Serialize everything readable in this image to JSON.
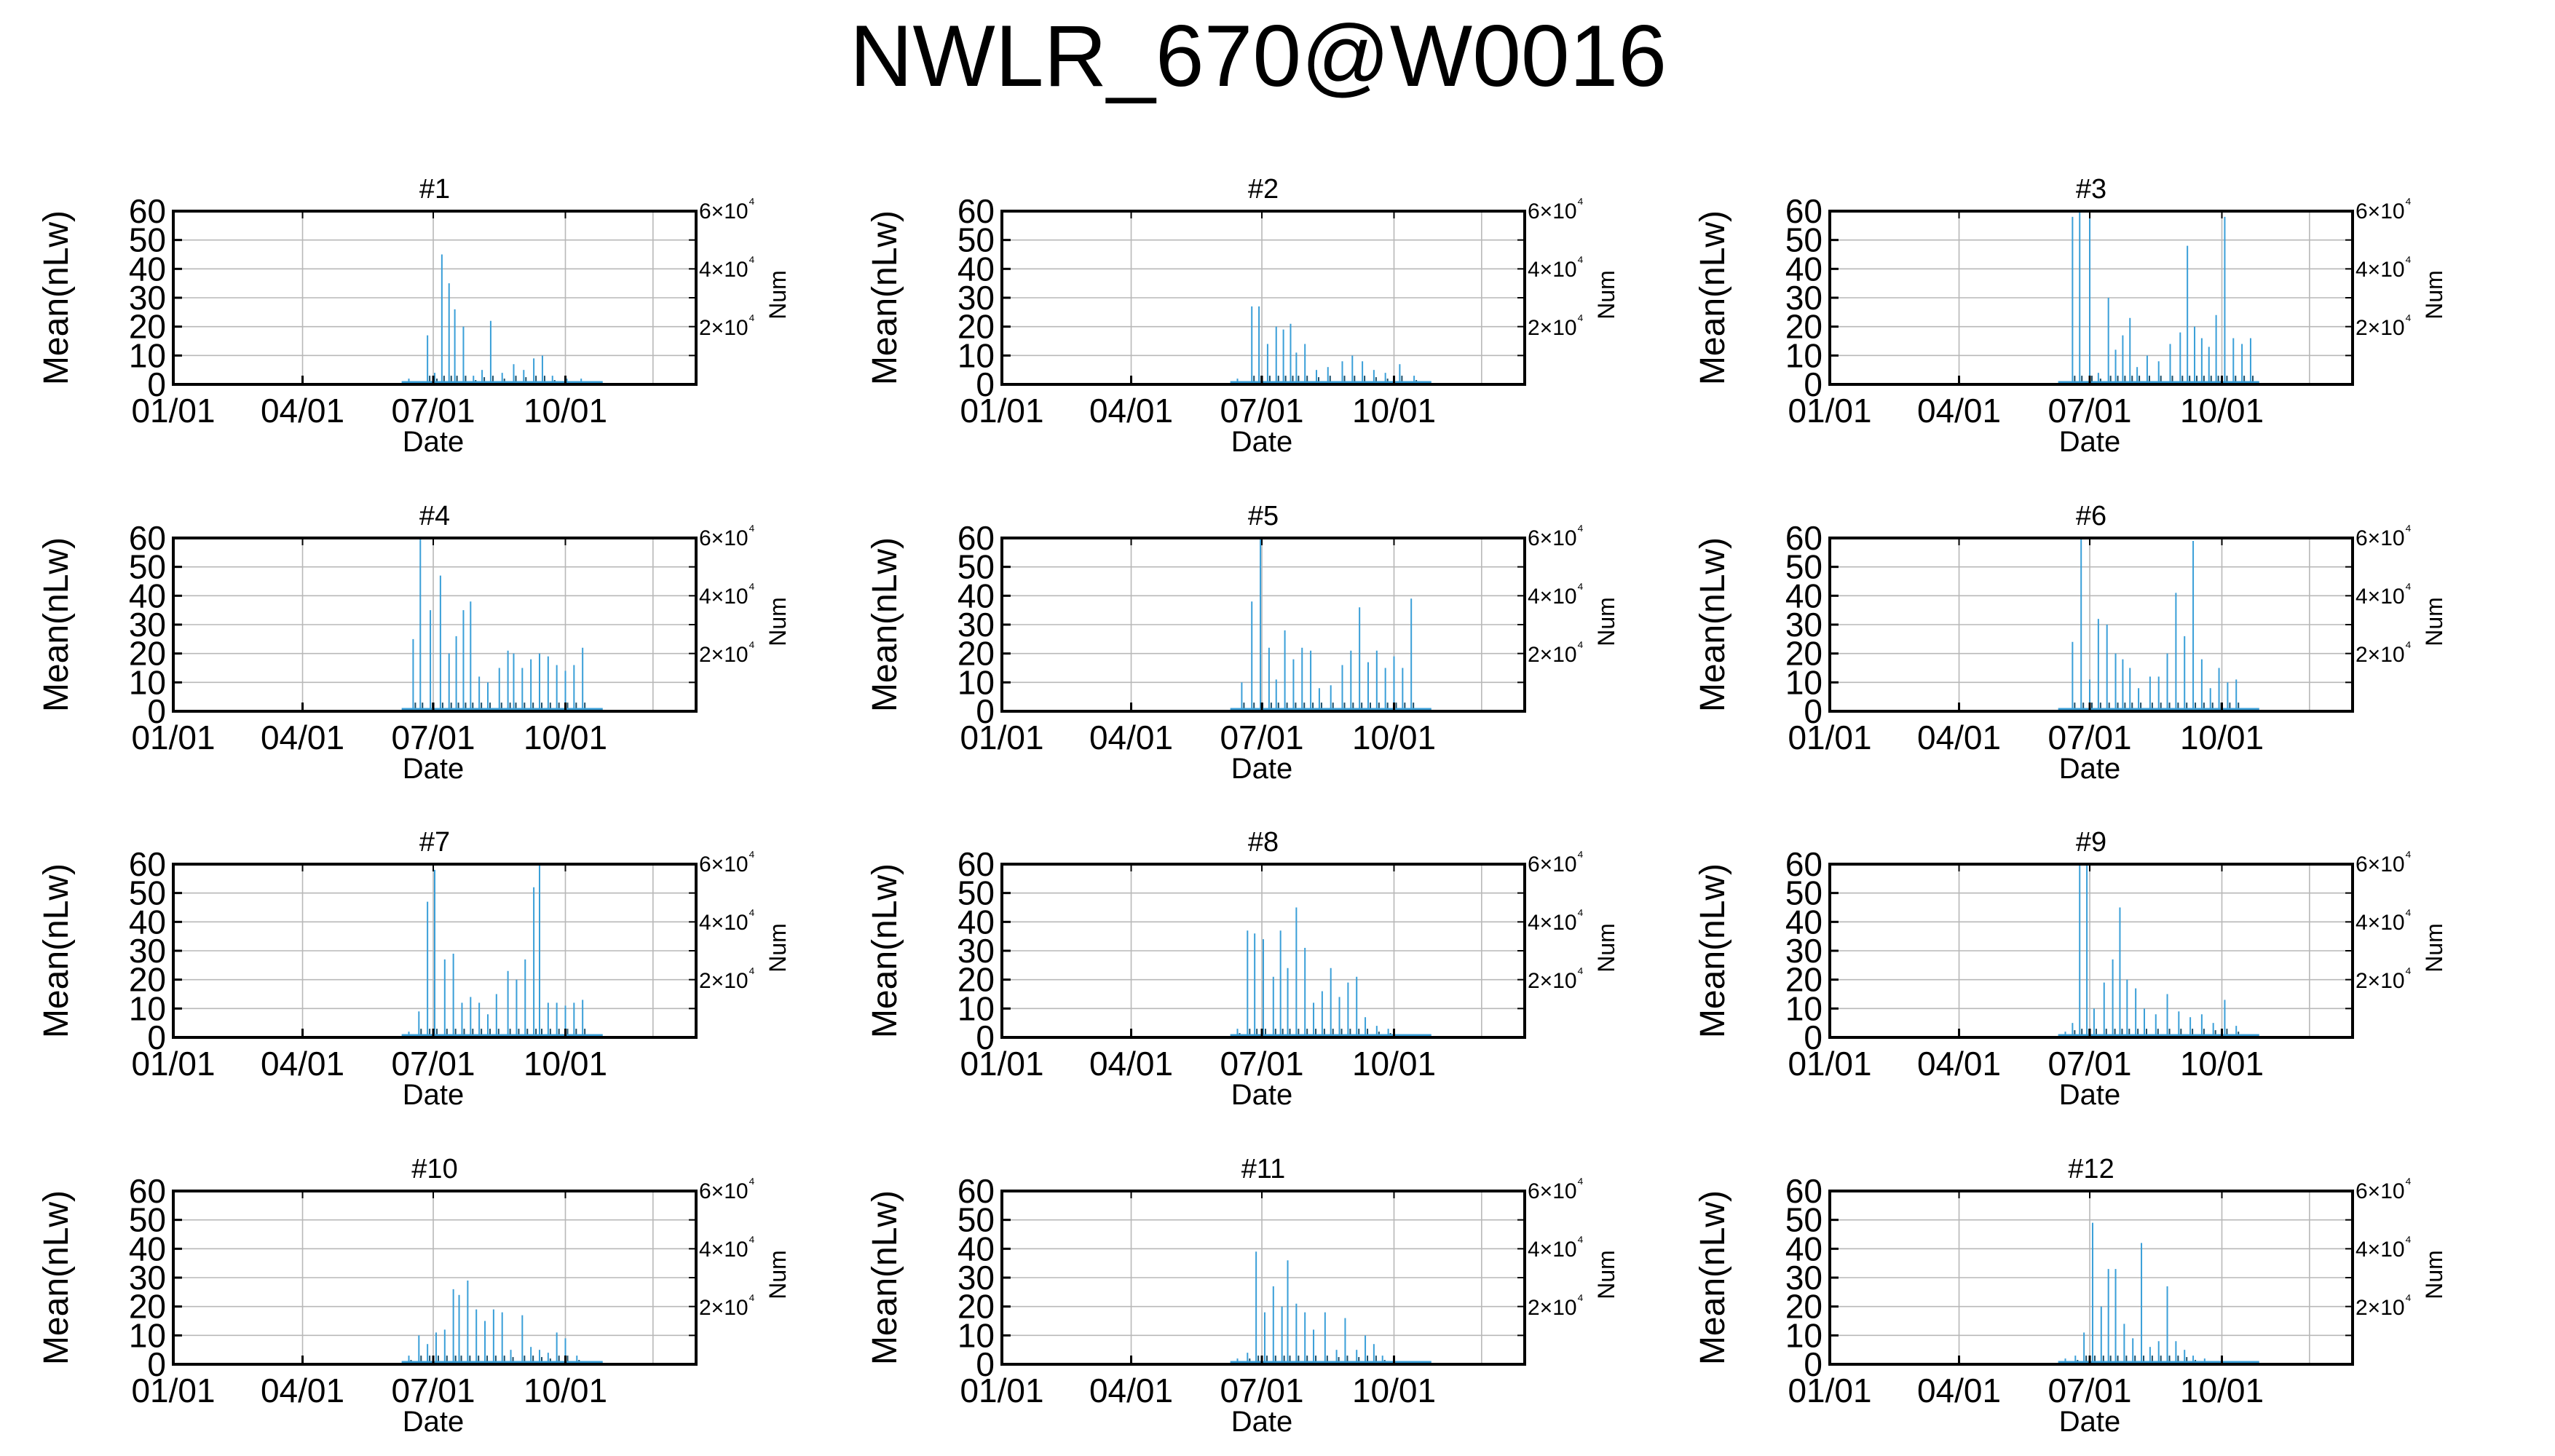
{
  "title": "NWLR_670@W0016",
  "colors": {
    "bar": "#3a9fd8",
    "dark_bar": "#1d4d66",
    "grid": "#b8b8b8",
    "axis": "#000000"
  },
  "chart_data": {
    "type": "bar",
    "layout": "4x3 small multiples",
    "x_axis": {
      "label": "Date",
      "range": [
        "01/01",
        "12/31"
      ],
      "ticks": [
        "01/01",
        "04/01",
        "07/01",
        "10/01"
      ],
      "tick_day_of_year": [
        1,
        91,
        182,
        274
      ]
    },
    "y_left": {
      "label": "Mean(nLw)",
      "range": [
        0,
        60
      ],
      "ticks": [
        "0",
        "10",
        "20",
        "30",
        "40",
        "50",
        "60"
      ]
    },
    "y_right": {
      "label": "Num",
      "ticks": [
        "2×10⁴",
        "4×10⁴",
        "6×10⁴"
      ]
    },
    "grid": true,
    "panels": [
      {
        "title": "#1",
        "spikes": [
          [
            165,
            2
          ],
          [
            178,
            17
          ],
          [
            183,
            4
          ],
          [
            188,
            45
          ],
          [
            193,
            35
          ],
          [
            197,
            26
          ],
          [
            203,
            20
          ],
          [
            210,
            3
          ],
          [
            216,
            5
          ],
          [
            222,
            22
          ],
          [
            230,
            4
          ],
          [
            238,
            7
          ],
          [
            245,
            5
          ],
          [
            252,
            9
          ],
          [
            258,
            10
          ],
          [
            265,
            3
          ],
          [
            275,
            2
          ],
          [
            285,
            2
          ]
        ]
      },
      {
        "title": "#2",
        "spikes": [
          [
            165,
            2
          ],
          [
            175,
            27
          ],
          [
            180,
            27
          ],
          [
            186,
            14
          ],
          [
            192,
            20
          ],
          [
            197,
            19
          ],
          [
            202,
            21
          ],
          [
            206,
            11
          ],
          [
            212,
            14
          ],
          [
            220,
            5
          ],
          [
            228,
            6
          ],
          [
            238,
            8
          ],
          [
            245,
            10
          ],
          [
            252,
            8
          ],
          [
            260,
            5
          ],
          [
            268,
            4
          ],
          [
            278,
            7
          ],
          [
            288,
            3
          ]
        ]
      },
      {
        "title": "#3",
        "spikes": [
          [
            170,
            58
          ],
          [
            175,
            60
          ],
          [
            182,
            60
          ],
          [
            188,
            4
          ],
          [
            195,
            30
          ],
          [
            200,
            12
          ],
          [
            205,
            17
          ],
          [
            210,
            23
          ],
          [
            215,
            6
          ],
          [
            222,
            10
          ],
          [
            230,
            8
          ],
          [
            238,
            14
          ],
          [
            245,
            18
          ],
          [
            250,
            48
          ],
          [
            255,
            20
          ],
          [
            260,
            16
          ],
          [
            265,
            13
          ],
          [
            270,
            24
          ],
          [
            276,
            58
          ],
          [
            282,
            16
          ],
          [
            288,
            14
          ],
          [
            294,
            16
          ]
        ]
      },
      {
        "title": "#4",
        "spikes": [
          [
            168,
            25
          ],
          [
            173,
            60
          ],
          [
            180,
            35
          ],
          [
            187,
            47
          ],
          [
            193,
            20
          ],
          [
            198,
            26
          ],
          [
            203,
            35
          ],
          [
            208,
            38
          ],
          [
            214,
            12
          ],
          [
            220,
            10
          ],
          [
            228,
            15
          ],
          [
            234,
            21
          ],
          [
            238,
            20
          ],
          [
            244,
            15
          ],
          [
            250,
            18
          ],
          [
            256,
            20
          ],
          [
            262,
            19
          ],
          [
            268,
            16
          ],
          [
            274,
            14
          ],
          [
            280,
            16
          ],
          [
            286,
            22
          ]
        ]
      },
      {
        "title": "#5",
        "spikes": [
          [
            168,
            10
          ],
          [
            175,
            38
          ],
          [
            181,
            60
          ],
          [
            187,
            22
          ],
          [
            192,
            11
          ],
          [
            198,
            28
          ],
          [
            204,
            18
          ],
          [
            210,
            22
          ],
          [
            216,
            21
          ],
          [
            222,
            8
          ],
          [
            230,
            9
          ],
          [
            238,
            16
          ],
          [
            244,
            21
          ],
          [
            250,
            36
          ],
          [
            256,
            17
          ],
          [
            262,
            21
          ],
          [
            268,
            15
          ],
          [
            274,
            19
          ],
          [
            280,
            15
          ],
          [
            286,
            39
          ]
        ]
      },
      {
        "title": "#6",
        "spikes": [
          [
            170,
            24
          ],
          [
            176,
            60
          ],
          [
            182,
            11
          ],
          [
            188,
            32
          ],
          [
            194,
            30
          ],
          [
            200,
            20
          ],
          [
            205,
            18
          ],
          [
            210,
            15
          ],
          [
            216,
            8
          ],
          [
            224,
            12
          ],
          [
            230,
            12
          ],
          [
            236,
            20
          ],
          [
            242,
            41
          ],
          [
            248,
            26
          ],
          [
            254,
            59
          ],
          [
            260,
            18
          ],
          [
            266,
            8
          ],
          [
            272,
            15
          ],
          [
            278,
            10
          ],
          [
            284,
            11
          ]
        ]
      },
      {
        "title": "#7",
        "spikes": [
          [
            165,
            2
          ],
          [
            172,
            9
          ],
          [
            178,
            47
          ],
          [
            183,
            58
          ],
          [
            190,
            27
          ],
          [
            196,
            29
          ],
          [
            202,
            12
          ],
          [
            208,
            14
          ],
          [
            214,
            12
          ],
          [
            220,
            8
          ],
          [
            226,
            15
          ],
          [
            234,
            23
          ],
          [
            240,
            20
          ],
          [
            246,
            27
          ],
          [
            252,
            52
          ],
          [
            256,
            60
          ],
          [
            262,
            12
          ],
          [
            268,
            12
          ],
          [
            274,
            11
          ],
          [
            280,
            12
          ],
          [
            286,
            13
          ]
        ]
      },
      {
        "title": "#8",
        "spikes": [
          [
            165,
            3
          ],
          [
            172,
            37
          ],
          [
            177,
            36
          ],
          [
            183,
            34
          ],
          [
            190,
            21
          ],
          [
            195,
            37
          ],
          [
            200,
            24
          ],
          [
            206,
            45
          ],
          [
            212,
            31
          ],
          [
            218,
            12
          ],
          [
            224,
            16
          ],
          [
            230,
            24
          ],
          [
            236,
            14
          ],
          [
            242,
            19
          ],
          [
            248,
            21
          ],
          [
            254,
            7
          ],
          [
            262,
            4
          ],
          [
            270,
            3
          ]
        ]
      },
      {
        "title": "#9",
        "spikes": [
          [
            165,
            2
          ],
          [
            170,
            5
          ],
          [
            175,
            60
          ],
          [
            180,
            60
          ],
          [
            185,
            10
          ],
          [
            192,
            19
          ],
          [
            198,
            27
          ],
          [
            203,
            45
          ],
          [
            208,
            20
          ],
          [
            214,
            17
          ],
          [
            220,
            10
          ],
          [
            228,
            8
          ],
          [
            236,
            15
          ],
          [
            244,
            9
          ],
          [
            252,
            7
          ],
          [
            260,
            8
          ],
          [
            268,
            5
          ],
          [
            276,
            13
          ],
          [
            284,
            4
          ]
        ]
      },
      {
        "title": "#10",
        "spikes": [
          [
            165,
            3
          ],
          [
            172,
            10
          ],
          [
            178,
            7
          ],
          [
            184,
            11
          ],
          [
            190,
            12
          ],
          [
            196,
            26
          ],
          [
            200,
            24
          ],
          [
            206,
            29
          ],
          [
            212,
            19
          ],
          [
            218,
            15
          ],
          [
            224,
            19
          ],
          [
            230,
            18
          ],
          [
            236,
            5
          ],
          [
            244,
            17
          ],
          [
            250,
            6
          ],
          [
            256,
            5
          ],
          [
            262,
            4
          ],
          [
            268,
            11
          ],
          [
            274,
            9
          ],
          [
            282,
            3
          ]
        ]
      },
      {
        "title": "#11",
        "spikes": [
          [
            165,
            2
          ],
          [
            172,
            4
          ],
          [
            178,
            39
          ],
          [
            184,
            18
          ],
          [
            190,
            27
          ],
          [
            196,
            20
          ],
          [
            200,
            36
          ],
          [
            206,
            21
          ],
          [
            212,
            18
          ],
          [
            218,
            12
          ],
          [
            226,
            18
          ],
          [
            234,
            5
          ],
          [
            240,
            16
          ],
          [
            248,
            5
          ],
          [
            254,
            10
          ],
          [
            260,
            7
          ],
          [
            266,
            3
          ],
          [
            274,
            2
          ]
        ]
      },
      {
        "title": "#12",
        "spikes": [
          [
            165,
            2
          ],
          [
            172,
            3
          ],
          [
            178,
            11
          ],
          [
            184,
            49
          ],
          [
            190,
            20
          ],
          [
            195,
            33
          ],
          [
            200,
            33
          ],
          [
            206,
            14
          ],
          [
            212,
            9
          ],
          [
            218,
            42
          ],
          [
            224,
            6
          ],
          [
            230,
            8
          ],
          [
            236,
            27
          ],
          [
            242,
            8
          ],
          [
            248,
            5
          ],
          [
            254,
            3
          ],
          [
            262,
            2
          ]
        ]
      }
    ]
  }
}
